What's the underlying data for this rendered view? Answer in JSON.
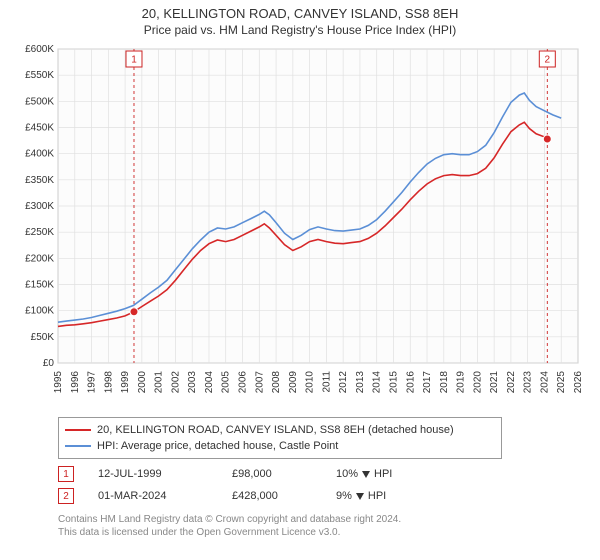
{
  "title": "20, KELLINGTON ROAD, CANVEY ISLAND, SS8 8EH",
  "subtitle": "Price paid vs. HM Land Registry's House Price Index (HPI)",
  "chart": {
    "type": "line",
    "background_color": "#ffffff",
    "plot_bg": "#fcfcfc",
    "grid_color": "#e0e0e0",
    "axis_color": "#666666",
    "font_size_axis": 10,
    "ylabel_prefix": "£",
    "ylim": [
      0,
      600000
    ],
    "ytick_step": 50000,
    "yticks": [
      "£0",
      "£50K",
      "£100K",
      "£150K",
      "£200K",
      "£250K",
      "£300K",
      "£350K",
      "£400K",
      "£450K",
      "£500K",
      "£550K",
      "£600K"
    ],
    "x_years": [
      1995,
      1996,
      1997,
      1998,
      1999,
      2000,
      2001,
      2002,
      2003,
      2004,
      2005,
      2006,
      2007,
      2008,
      2009,
      2010,
      2011,
      2012,
      2013,
      2014,
      2015,
      2016,
      2017,
      2018,
      2019,
      2020,
      2021,
      2022,
      2023,
      2024,
      2025,
      2026
    ],
    "marker_line_dash": "3,3",
    "series": [
      {
        "name": "20, KELLINGTON ROAD, CANVEY ISLAND, SS8 8EH (detached house)",
        "color": "#d62728",
        "width": 1.6,
        "points": [
          [
            1995.0,
            70000
          ],
          [
            1995.5,
            72000
          ],
          [
            1996.0,
            73000
          ],
          [
            1996.5,
            75000
          ],
          [
            1997.0,
            77000
          ],
          [
            1997.5,
            80000
          ],
          [
            1998.0,
            83000
          ],
          [
            1998.5,
            86000
          ],
          [
            1999.0,
            90000
          ],
          [
            1999.53,
            98000
          ],
          [
            2000.0,
            108000
          ],
          [
            2000.5,
            118000
          ],
          [
            2001.0,
            128000
          ],
          [
            2001.5,
            140000
          ],
          [
            2002.0,
            158000
          ],
          [
            2002.5,
            178000
          ],
          [
            2003.0,
            198000
          ],
          [
            2003.5,
            215000
          ],
          [
            2004.0,
            228000
          ],
          [
            2004.5,
            235000
          ],
          [
            2005.0,
            232000
          ],
          [
            2005.5,
            236000
          ],
          [
            2006.0,
            244000
          ],
          [
            2006.5,
            252000
          ],
          [
            2007.0,
            260000
          ],
          [
            2007.3,
            266000
          ],
          [
            2007.6,
            258000
          ],
          [
            2008.0,
            244000
          ],
          [
            2008.5,
            226000
          ],
          [
            2009.0,
            215000
          ],
          [
            2009.5,
            222000
          ],
          [
            2010.0,
            232000
          ],
          [
            2010.5,
            236000
          ],
          [
            2011.0,
            232000
          ],
          [
            2011.5,
            229000
          ],
          [
            2012.0,
            228000
          ],
          [
            2012.5,
            230000
          ],
          [
            2013.0,
            232000
          ],
          [
            2013.5,
            238000
          ],
          [
            2014.0,
            248000
          ],
          [
            2014.5,
            262000
          ],
          [
            2015.0,
            278000
          ],
          [
            2015.5,
            294000
          ],
          [
            2016.0,
            312000
          ],
          [
            2016.5,
            328000
          ],
          [
            2017.0,
            342000
          ],
          [
            2017.5,
            352000
          ],
          [
            2018.0,
            358000
          ],
          [
            2018.5,
            360000
          ],
          [
            2019.0,
            358000
          ],
          [
            2019.5,
            358000
          ],
          [
            2020.0,
            362000
          ],
          [
            2020.5,
            372000
          ],
          [
            2021.0,
            392000
          ],
          [
            2021.5,
            418000
          ],
          [
            2022.0,
            442000
          ],
          [
            2022.5,
            455000
          ],
          [
            2022.8,
            460000
          ],
          [
            2023.1,
            448000
          ],
          [
            2023.5,
            438000
          ],
          [
            2024.0,
            432000
          ],
          [
            2024.17,
            428000
          ]
        ]
      },
      {
        "name": "HPI: Average price, detached house, Castle Point",
        "color": "#5b8fd6",
        "width": 1.6,
        "points": [
          [
            1995.0,
            78000
          ],
          [
            1995.5,
            80000
          ],
          [
            1996.0,
            82000
          ],
          [
            1996.5,
            84000
          ],
          [
            1997.0,
            87000
          ],
          [
            1997.5,
            91000
          ],
          [
            1998.0,
            95000
          ],
          [
            1998.5,
            99000
          ],
          [
            1999.0,
            104000
          ],
          [
            1999.5,
            110000
          ],
          [
            2000.0,
            122000
          ],
          [
            2000.5,
            134000
          ],
          [
            2001.0,
            145000
          ],
          [
            2001.5,
            158000
          ],
          [
            2002.0,
            178000
          ],
          [
            2002.5,
            198000
          ],
          [
            2003.0,
            218000
          ],
          [
            2003.5,
            235000
          ],
          [
            2004.0,
            250000
          ],
          [
            2004.5,
            258000
          ],
          [
            2005.0,
            256000
          ],
          [
            2005.5,
            260000
          ],
          [
            2006.0,
            268000
          ],
          [
            2006.5,
            276000
          ],
          [
            2007.0,
            284000
          ],
          [
            2007.3,
            290000
          ],
          [
            2007.6,
            283000
          ],
          [
            2008.0,
            268000
          ],
          [
            2008.5,
            248000
          ],
          [
            2009.0,
            236000
          ],
          [
            2009.5,
            244000
          ],
          [
            2010.0,
            255000
          ],
          [
            2010.5,
            260000
          ],
          [
            2011.0,
            256000
          ],
          [
            2011.5,
            253000
          ],
          [
            2012.0,
            252000
          ],
          [
            2012.5,
            254000
          ],
          [
            2013.0,
            256000
          ],
          [
            2013.5,
            263000
          ],
          [
            2014.0,
            274000
          ],
          [
            2014.5,
            290000
          ],
          [
            2015.0,
            308000
          ],
          [
            2015.5,
            326000
          ],
          [
            2016.0,
            346000
          ],
          [
            2016.5,
            364000
          ],
          [
            2017.0,
            380000
          ],
          [
            2017.5,
            391000
          ],
          [
            2018.0,
            398000
          ],
          [
            2018.5,
            400000
          ],
          [
            2019.0,
            398000
          ],
          [
            2019.5,
            398000
          ],
          [
            2020.0,
            404000
          ],
          [
            2020.5,
            416000
          ],
          [
            2021.0,
            440000
          ],
          [
            2021.5,
            470000
          ],
          [
            2022.0,
            498000
          ],
          [
            2022.5,
            512000
          ],
          [
            2022.8,
            516000
          ],
          [
            2023.1,
            502000
          ],
          [
            2023.5,
            490000
          ],
          [
            2024.0,
            482000
          ],
          [
            2024.5,
            474000
          ],
          [
            2025.0,
            468000
          ]
        ]
      }
    ],
    "markers": [
      {
        "n": "1",
        "x": 1999.53,
        "y": 98000,
        "date": "12-JUL-1999",
        "price": "£98,000",
        "pct": "10%",
        "vs": "HPI"
      },
      {
        "n": "2",
        "x": 2024.17,
        "y": 428000,
        "date": "01-MAR-2024",
        "price": "£428,000",
        "pct": "9%",
        "vs": "HPI"
      }
    ]
  },
  "legend": {
    "border_color": "#999999"
  },
  "attribution": {
    "l1": "Contains HM Land Registry data © Crown copyright and database right 2024.",
    "l2": "This data is licensed under the Open Government Licence v3.0."
  },
  "colors": {
    "marker_red": "#cc2222",
    "text": "#333333",
    "muted": "#888888"
  }
}
